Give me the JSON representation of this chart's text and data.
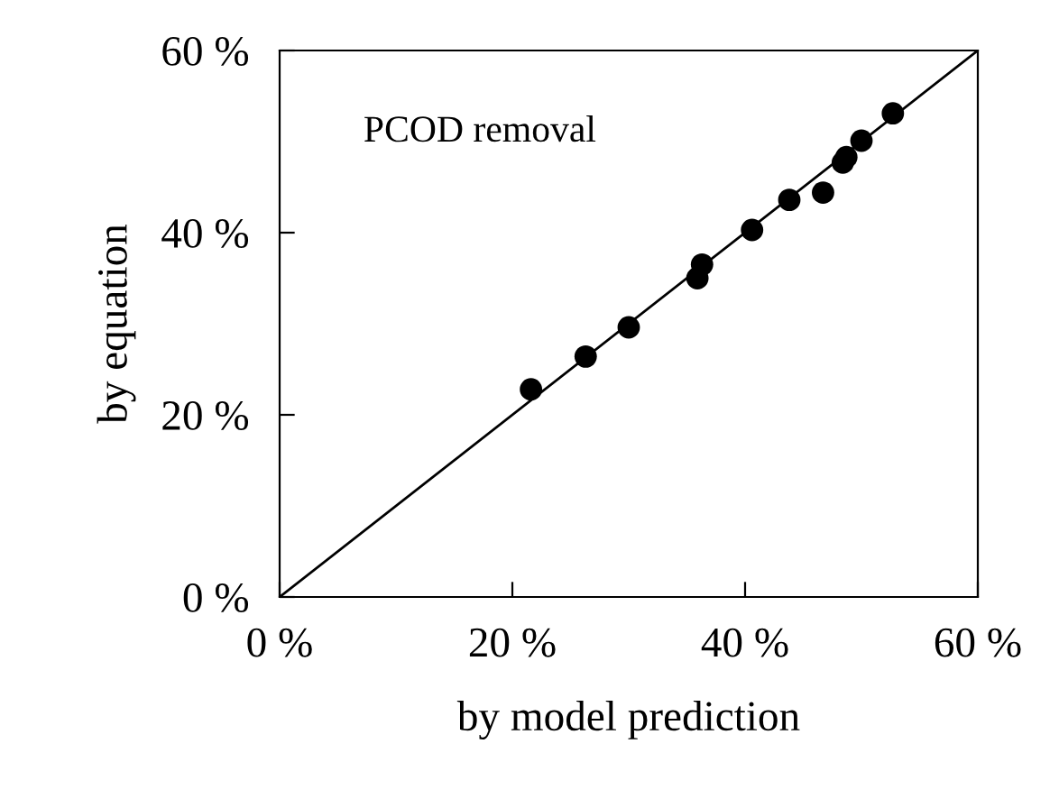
{
  "chart_data": {
    "type": "scatter",
    "xlabel": "by model prediction",
    "ylabel": "by equation",
    "annotations": [
      "PCOD removal"
    ],
    "series": [
      {
        "color": "#000000",
        "marker": "circle",
        "x": [
          21.6,
          26.3,
          30.0,
          35.9,
          36.3,
          40.6,
          43.8,
          46.7,
          48.4,
          48.7,
          50.0,
          52.7
        ],
        "values": [
          22.8,
          26.4,
          29.6,
          35.0,
          36.5,
          40.3,
          43.6,
          44.4,
          47.7,
          48.3,
          50.1,
          53.1
        ]
      },
      {
        "type": "line",
        "color": "#000000",
        "marker": "none",
        "line_style": "solid",
        "x": [
          0,
          60
        ],
        "values": [
          0,
          60
        ]
      }
    ],
    "xlim": [
      0,
      60
    ],
    "ylim": [
      0,
      60
    ],
    "xticks": [
      {
        "value": 0,
        "label": "0 %"
      },
      {
        "value": 20,
        "label": "20 %"
      },
      {
        "value": 40,
        "label": "40 %"
      },
      {
        "value": 60,
        "label": "60 %"
      }
    ],
    "yticks": [
      {
        "value": 0,
        "label": "0 %"
      },
      {
        "value": 20,
        "label": "20 %"
      },
      {
        "value": 40,
        "label": "40 %"
      },
      {
        "value": 60,
        "label": "60 %"
      }
    ],
    "grid": false,
    "legend": false
  }
}
